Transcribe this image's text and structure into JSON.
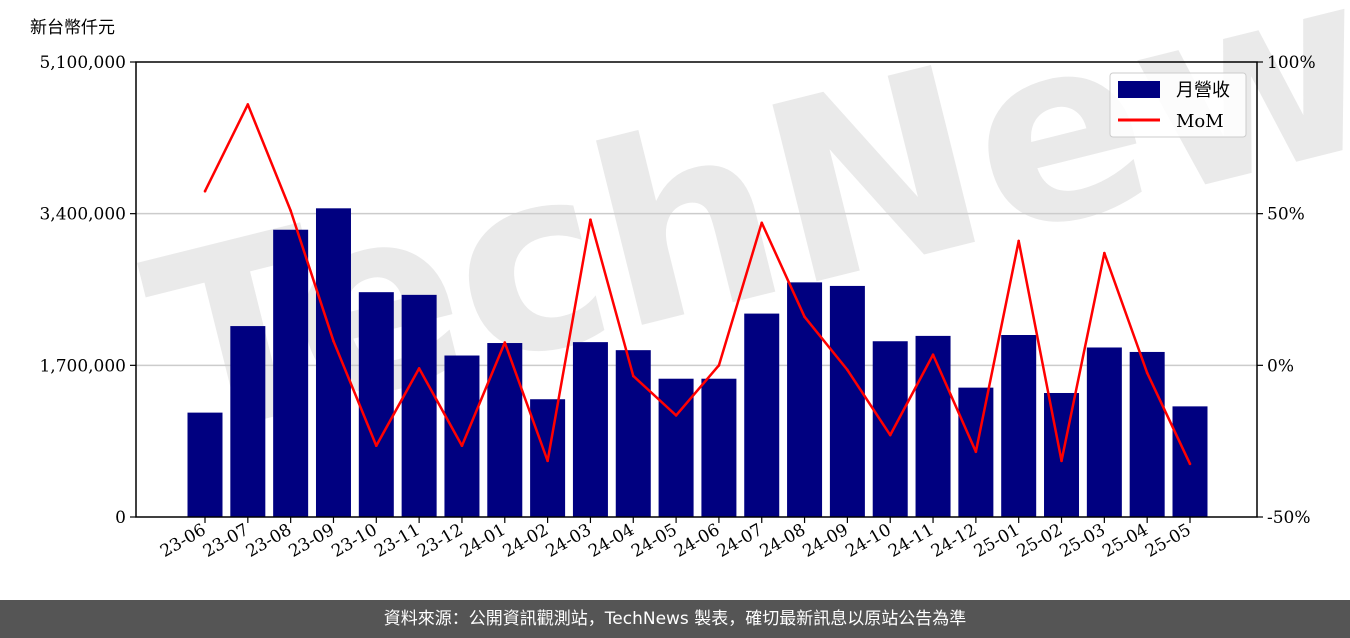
{
  "unit_label": "新台幣仟元",
  "footer_text": "資料來源：公開資訊觀測站，TechNews 製表，確切最新訊息以原站公告為準",
  "watermark_text": "TechNews",
  "chart_data": {
    "type": "bar",
    "categories": [
      "23-06",
      "23-07",
      "23-08",
      "23-09",
      "23-10",
      "23-11",
      "23-12",
      "24-01",
      "24-02",
      "24-03",
      "24-04",
      "24-05",
      "24-06",
      "24-07",
      "24-08",
      "24-09",
      "24-10",
      "24-11",
      "24-12",
      "25-01",
      "25-02",
      "25-03",
      "25-04",
      "25-05"
    ],
    "series": [
      {
        "name": "月營收",
        "type": "bar",
        "axis": "left",
        "color": "#000080",
        "values": [
          1170000,
          2140000,
          3220000,
          3460000,
          2520000,
          2490000,
          1810000,
          1950000,
          1320000,
          1960000,
          1870000,
          1550000,
          1550000,
          2280000,
          2630000,
          2590000,
          1970000,
          2030000,
          1450000,
          2040000,
          1390000,
          1900000,
          1850000,
          1240000
        ]
      },
      {
        "name": "MoM",
        "type": "line",
        "axis": "right",
        "color": "#ff0000",
        "values": [
          57.4,
          86.0,
          51.0,
          8.0,
          -26.5,
          -1.0,
          -26.5,
          7.5,
          -31.5,
          48.0,
          -3.5,
          -16.5,
          0.0,
          47.0,
          16.0,
          -1.5,
          -23.0,
          3.5,
          -28.5,
          41.0,
          -31.5,
          37.0,
          -2.5,
          -32.5
        ]
      }
    ],
    "y_left": {
      "ylim": [
        0,
        5100000
      ],
      "ticks": [
        0,
        1700000,
        3400000,
        5100000
      ],
      "tick_labels": [
        "0",
        "1,700,000",
        "3,400,000",
        "5,100,000"
      ]
    },
    "y_right": {
      "ylim": [
        -50,
        100
      ],
      "ticks": [
        -50,
        0,
        50,
        100
      ],
      "tick_labels": [
        "-50%",
        "0%",
        "50%",
        "100%"
      ]
    },
    "grid": "horizontal",
    "legend": "top-right"
  }
}
